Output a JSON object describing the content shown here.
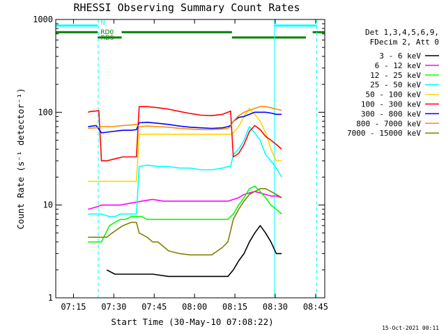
{
  "chart_data": {
    "type": "line",
    "title": "RHESSI Observing Summary Count Rates",
    "xlabel": "Start Time (30-May-10 07:08:22)",
    "ylabel": "Count Rate (s⁻¹ detector⁻¹)",
    "x_unit": "minutes after 07:08:22",
    "xlim": [
      0,
      100
    ],
    "ylim": [
      1,
      1000
    ],
    "log_y": true,
    "x_ticks": [
      {
        "value": 6.6,
        "label": "07:15"
      },
      {
        "value": 21.6,
        "label": "07:30"
      },
      {
        "value": 36.6,
        "label": "07:45"
      },
      {
        "value": 51.6,
        "label": "08:00"
      },
      {
        "value": 66.6,
        "label": "08:15"
      },
      {
        "value": 81.6,
        "label": "08:30"
      },
      {
        "value": 96.6,
        "label": "08:45"
      }
    ],
    "y_ticks": [
      {
        "value": 1,
        "label": "1"
      },
      {
        "value": 10,
        "label": "10"
      },
      {
        "value": 100,
        "label": "100"
      },
      {
        "value": 1000,
        "label": "1000"
      }
    ],
    "legend_header": [
      "Det 1,3,4,5,6,9,",
      "FDecim 2, Att 0"
    ],
    "legend_position": "right",
    "series": [
      {
        "name": "3 - 6 keV",
        "color": "#000000",
        "points": [
          [
            19,
            2
          ],
          [
            22,
            1.8
          ],
          [
            30,
            1.8
          ],
          [
            36,
            1.8
          ],
          [
            42,
            1.7
          ],
          [
            50,
            1.7
          ],
          [
            58,
            1.7
          ],
          [
            64,
            1.7
          ],
          [
            66,
            2
          ],
          [
            68,
            2.5
          ],
          [
            70,
            3
          ],
          [
            72,
            4
          ],
          [
            74,
            5
          ],
          [
            76,
            6
          ],
          [
            78,
            5
          ],
          [
            80,
            4
          ],
          [
            82,
            3
          ],
          [
            84,
            3
          ]
        ]
      },
      {
        "name": "6 - 12 keV",
        "color": "#ff00ff",
        "points": [
          [
            12,
            9
          ],
          [
            15,
            9.5
          ],
          [
            17,
            10
          ],
          [
            20,
            10
          ],
          [
            24,
            10
          ],
          [
            28,
            10.5
          ],
          [
            32,
            11
          ],
          [
            36,
            11.5
          ],
          [
            40,
            11
          ],
          [
            44,
            11
          ],
          [
            48,
            11
          ],
          [
            52,
            11
          ],
          [
            56,
            11
          ],
          [
            60,
            11
          ],
          [
            64,
            11
          ],
          [
            66,
            11.5
          ],
          [
            68,
            12
          ],
          [
            70,
            13
          ],
          [
            72,
            13.5
          ],
          [
            74,
            14
          ],
          [
            76,
            13.5
          ],
          [
            78,
            13
          ],
          [
            80,
            12.5
          ],
          [
            82,
            12.5
          ],
          [
            84,
            12
          ]
        ]
      },
      {
        "name": "12 - 25 keV",
        "color": "#00ff00",
        "points": [
          [
            12,
            4
          ],
          [
            15,
            4
          ],
          [
            17,
            4
          ],
          [
            20,
            6
          ],
          [
            22,
            6.5
          ],
          [
            24,
            7
          ],
          [
            26,
            7
          ],
          [
            28,
            7.5
          ],
          [
            30,
            7.5
          ],
          [
            32,
            7.5
          ],
          [
            34,
            7
          ],
          [
            36,
            7
          ],
          [
            40,
            7
          ],
          [
            44,
            7
          ],
          [
            48,
            7
          ],
          [
            52,
            7
          ],
          [
            56,
            7
          ],
          [
            60,
            7
          ],
          [
            64,
            7
          ],
          [
            66,
            8
          ],
          [
            68,
            10
          ],
          [
            70,
            12
          ],
          [
            72,
            15
          ],
          [
            74,
            16
          ],
          [
            76,
            14
          ],
          [
            78,
            12
          ],
          [
            80,
            10
          ],
          [
            82,
            9
          ],
          [
            84,
            8
          ]
        ]
      },
      {
        "name": "25 - 50 keV",
        "color": "#00ffff",
        "points": [
          [
            12,
            8
          ],
          [
            15,
            8
          ],
          [
            17,
            8
          ],
          [
            20,
            7.5
          ],
          [
            22,
            7.5
          ],
          [
            24,
            8
          ],
          [
            26,
            8
          ],
          [
            28,
            8
          ],
          [
            30,
            8
          ],
          [
            31,
            26
          ],
          [
            34,
            27
          ],
          [
            38,
            26
          ],
          [
            42,
            26
          ],
          [
            46,
            25
          ],
          [
            50,
            25
          ],
          [
            54,
            24
          ],
          [
            58,
            24
          ],
          [
            62,
            25
          ],
          [
            64,
            26
          ],
          [
            65,
            26
          ],
          [
            66,
            35
          ],
          [
            68,
            40
          ],
          [
            70,
            50
          ],
          [
            72,
            70
          ],
          [
            74,
            60
          ],
          [
            76,
            50
          ],
          [
            78,
            35
          ],
          [
            80,
            30
          ],
          [
            82,
            25
          ],
          [
            84,
            20
          ]
        ]
      },
      {
        "name": "50 - 100 keV",
        "color": "#ffd700",
        "points": [
          [
            12,
            18
          ],
          [
            15,
            18
          ],
          [
            17,
            18
          ],
          [
            19,
            18
          ],
          [
            20,
            18
          ],
          [
            22,
            18
          ],
          [
            24,
            18
          ],
          [
            26,
            18
          ],
          [
            28,
            18
          ],
          [
            30,
            18
          ],
          [
            31,
            58
          ],
          [
            34,
            58
          ],
          [
            38,
            58
          ],
          [
            42,
            58
          ],
          [
            46,
            58
          ],
          [
            50,
            58
          ],
          [
            54,
            58
          ],
          [
            58,
            58
          ],
          [
            62,
            58
          ],
          [
            64,
            58
          ],
          [
            65,
            58
          ],
          [
            66,
            60
          ],
          [
            68,
            70
          ],
          [
            70,
            90
          ],
          [
            72,
            110
          ],
          [
            74,
            95
          ],
          [
            76,
            80
          ],
          [
            78,
            60
          ],
          [
            80,
            40
          ],
          [
            82,
            30
          ],
          [
            84,
            30
          ]
        ]
      },
      {
        "name": "100 - 300 keV",
        "color": "#ff0000",
        "points": [
          [
            12,
            100
          ],
          [
            13,
            102
          ],
          [
            15,
            103
          ],
          [
            16,
            104
          ],
          [
            17,
            30
          ],
          [
            19,
            30
          ],
          [
            21,
            31
          ],
          [
            23,
            32
          ],
          [
            25,
            33
          ],
          [
            28,
            33
          ],
          [
            30,
            33
          ],
          [
            31,
            115
          ],
          [
            34,
            115
          ],
          [
            38,
            112
          ],
          [
            42,
            108
          ],
          [
            46,
            102
          ],
          [
            50,
            97
          ],
          [
            54,
            93
          ],
          [
            58,
            92
          ],
          [
            62,
            95
          ],
          [
            64,
            100
          ],
          [
            65,
            103
          ],
          [
            66,
            33
          ],
          [
            68,
            36
          ],
          [
            70,
            45
          ],
          [
            72,
            62
          ],
          [
            74,
            72
          ],
          [
            76,
            65
          ],
          [
            78,
            55
          ],
          [
            80,
            50
          ],
          [
            82,
            45
          ],
          [
            84,
            40
          ]
        ]
      },
      {
        "name": "300 - 800 keV",
        "color": "#0000ff",
        "points": [
          [
            12,
            70
          ],
          [
            15,
            72
          ],
          [
            17,
            60
          ],
          [
            19,
            61
          ],
          [
            21,
            62
          ],
          [
            23,
            63
          ],
          [
            25,
            64
          ],
          [
            28,
            64
          ],
          [
            30,
            65
          ],
          [
            31,
            77
          ],
          [
            34,
            78
          ],
          [
            38,
            76
          ],
          [
            42,
            74
          ],
          [
            46,
            71
          ],
          [
            50,
            69
          ],
          [
            54,
            68
          ],
          [
            58,
            67
          ],
          [
            62,
            68
          ],
          [
            64,
            70
          ],
          [
            65,
            72
          ],
          [
            66,
            80
          ],
          [
            68,
            88
          ],
          [
            70,
            90
          ],
          [
            72,
            95
          ],
          [
            74,
            100
          ],
          [
            76,
            100
          ],
          [
            78,
            100
          ],
          [
            80,
            98
          ],
          [
            82,
            95
          ],
          [
            84,
            95
          ]
        ]
      },
      {
        "name": "800 - 7000 keV",
        "color": "#ff8c00",
        "points": [
          [
            12,
            67
          ],
          [
            15,
            68
          ],
          [
            17,
            70
          ],
          [
            19,
            70
          ],
          [
            21,
            70
          ],
          [
            23,
            71
          ],
          [
            25,
            72
          ],
          [
            28,
            73
          ],
          [
            30,
            74
          ],
          [
            31,
            70
          ],
          [
            34,
            71
          ],
          [
            38,
            70
          ],
          [
            42,
            69
          ],
          [
            46,
            67
          ],
          [
            50,
            66
          ],
          [
            54,
            65
          ],
          [
            58,
            65
          ],
          [
            62,
            66
          ],
          [
            64,
            67
          ],
          [
            65,
            70
          ],
          [
            66,
            80
          ],
          [
            68,
            92
          ],
          [
            70,
            100
          ],
          [
            72,
            105
          ],
          [
            74,
            110
          ],
          [
            76,
            115
          ],
          [
            78,
            115
          ],
          [
            80,
            112
          ],
          [
            82,
            108
          ],
          [
            84,
            105
          ]
        ]
      },
      {
        "name": "7000 - 15000 keV",
        "color": "#808000",
        "points": [
          [
            12,
            4.5
          ],
          [
            15,
            4.5
          ],
          [
            17,
            4.5
          ],
          [
            19,
            4.5
          ],
          [
            21,
            5
          ],
          [
            23,
            5.5
          ],
          [
            25,
            6
          ],
          [
            28,
            6.5
          ],
          [
            30,
            6.5
          ],
          [
            31,
            5
          ],
          [
            34,
            4.5
          ],
          [
            36,
            4
          ],
          [
            38,
            4
          ],
          [
            42,
            3.2
          ],
          [
            46,
            3
          ],
          [
            50,
            2.9
          ],
          [
            54,
            2.9
          ],
          [
            58,
            2.9
          ],
          [
            62,
            3.5
          ],
          [
            64,
            4
          ],
          [
            66,
            7
          ],
          [
            68,
            9
          ],
          [
            70,
            11
          ],
          [
            72,
            13
          ],
          [
            74,
            14
          ],
          [
            76,
            15
          ],
          [
            78,
            15
          ],
          [
            80,
            14
          ],
          [
            82,
            13
          ],
          [
            84,
            12
          ]
        ]
      }
    ],
    "vertical_lines": [
      {
        "x": 15.8,
        "style": "dashed",
        "color": "#00ffff"
      },
      {
        "x": 81.3,
        "style": "solid",
        "color": "#00ffff"
      },
      {
        "x": 97.0,
        "style": "dashed",
        "color": "#00ffff"
      }
    ],
    "flag_bars": [
      {
        "label": "N",
        "color": "#00ffff",
        "value_level": 860,
        "segments": [
          [
            0,
            15.6
          ],
          [
            81.4,
            97.0
          ]
        ]
      },
      {
        "label": "RD0",
        "color": "#008000",
        "value_level": 730,
        "segments": [
          [
            0,
            15.6
          ],
          [
            24.5,
            65.5
          ],
          [
            95.5,
            100
          ]
        ]
      },
      {
        "label": "RDS",
        "color": "#008000",
        "value_level": 640,
        "segments": [
          [
            15.6,
            24.5
          ],
          [
            65.5,
            93.0
          ]
        ]
      }
    ],
    "footer_stamp": "15-Oct-2021 00:11"
  }
}
